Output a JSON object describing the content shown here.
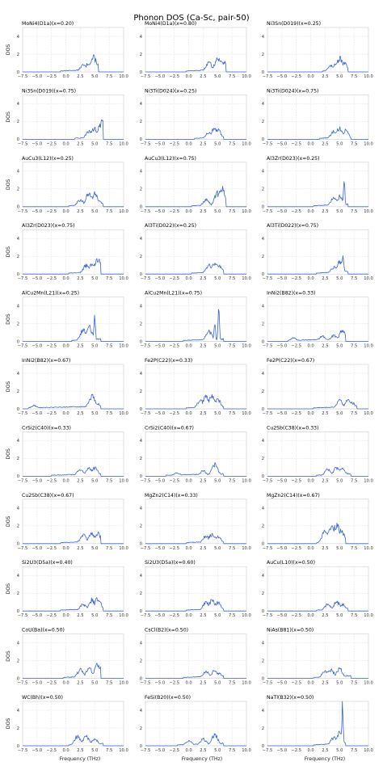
{
  "figure": {
    "title": "Phonon DOS (Ca-Sc, pair-50)",
    "xlabel": "Frequency (THz)",
    "ylabel": "DOS",
    "line_color": "#3b64d4"
  },
  "chart_data": {
    "type": "line",
    "grid": true,
    "xlim": [
      -7.5,
      10.0
    ],
    "ylim": [
      0,
      5
    ],
    "xticks": [
      "−7.5",
      "−5.0",
      "−2.5",
      "0.0",
      "2.5",
      "5.0",
      "7.5",
      "10.0"
    ],
    "yticks": [
      "0",
      "2",
      "4"
    ],
    "panels": [
      {
        "title": "MoNi4(D1a)(x=0.20)",
        "start": -1.0,
        "end": 5.6,
        "peaks": [
          [
            3.0,
            0.8
          ],
          [
            4.0,
            1.1
          ],
          [
            4.8,
            1.7
          ],
          [
            5.3,
            1.1
          ]
        ]
      },
      {
        "title": "MoNi4(D1a)(x=0.80)",
        "start": -0.5,
        "end": 6.5,
        "peaks": [
          [
            3.5,
            1.1
          ],
          [
            5.0,
            1.6
          ],
          [
            5.7,
            1.3
          ],
          [
            6.2,
            1.2
          ]
        ]
      },
      {
        "title": "Ni3Sn(D019)(x=0.25)",
        "start": 2.0,
        "end": 6.5,
        "peaks": [
          [
            3.5,
            0.7
          ],
          [
            4.5,
            1.2
          ],
          [
            5.0,
            1.6
          ],
          [
            5.8,
            1.0
          ]
        ]
      },
      {
        "title": "Ni3Sn(D019)(x=0.75)",
        "start": 1.5,
        "end": 6.5,
        "peaks": [
          [
            4.0,
            1.0
          ],
          [
            5.0,
            1.3
          ],
          [
            5.8,
            1.4
          ],
          [
            6.2,
            2.0
          ]
        ]
      },
      {
        "title": "Ni3Ti(D024)(x=0.25)",
        "start": 1.0,
        "end": 6.0,
        "peaks": [
          [
            3.5,
            0.9
          ],
          [
            4.5,
            1.3
          ],
          [
            5.0,
            1.1
          ]
        ]
      },
      {
        "title": "Ni3Ti(D024)(x=0.75)",
        "start": 1.5,
        "end": 7.0,
        "peaks": [
          [
            4.0,
            0.9
          ],
          [
            5.0,
            1.3
          ],
          [
            6.0,
            1.0
          ]
        ]
      },
      {
        "title": "AuCu3(L12)(x=0.25)",
        "start": 0.5,
        "end": 6.5,
        "peaks": [
          [
            2.5,
            0.8
          ],
          [
            4.0,
            1.6
          ],
          [
            5.0,
            1.5
          ],
          [
            5.8,
            0.6
          ]
        ]
      },
      {
        "title": "AuCu3(L12)(x=0.75)",
        "start": 0.5,
        "end": 6.5,
        "peaks": [
          [
            3.0,
            0.8
          ],
          [
            5.0,
            1.6
          ],
          [
            5.8,
            2.2
          ]
        ]
      },
      {
        "title": "Al3Zr(D023)(x=0.25)",
        "start": 0.5,
        "end": 6.5,
        "peaks": [
          [
            4.0,
            1.0
          ],
          [
            5.0,
            1.2
          ],
          [
            5.8,
            3.0
          ]
        ]
      },
      {
        "title": "Al3Zr(D023)(x=0.75)",
        "start": 0.5,
        "end": 6.0,
        "peaks": [
          [
            3.5,
            1.0
          ],
          [
            4.5,
            1.3
          ],
          [
            5.5,
            1.7
          ]
        ]
      },
      {
        "title": "Al3Ti(D022)(x=0.25)",
        "start": 0.5,
        "end": 6.0,
        "peaks": [
          [
            3.5,
            1.0
          ],
          [
            4.5,
            1.3
          ],
          [
            5.3,
            1.0
          ]
        ]
      },
      {
        "title": "Al3Ti(D022)(x=0.75)",
        "start": 1.0,
        "end": 6.5,
        "peaks": [
          [
            4.0,
            0.8
          ],
          [
            5.0,
            1.4
          ],
          [
            5.6,
            2.5
          ]
        ]
      },
      {
        "title": "AlCu2Mn(L21)(x=0.25)",
        "start": 1.0,
        "end": 6.0,
        "peaks": [
          [
            3.0,
            1.3
          ],
          [
            4.0,
            1.7
          ],
          [
            5.0,
            3.5
          ]
        ]
      },
      {
        "title": "AlCu2Mn(L21)(x=0.75)",
        "start": -1.0,
        "end": 6.0,
        "peaks": [
          [
            3.5,
            1.2
          ],
          [
            4.5,
            2.5
          ],
          [
            5.2,
            4.3
          ]
        ]
      },
      {
        "title": "InNi2(B82)(x=0.33)",
        "start": -4.0,
        "end": 6.0,
        "peaks": [
          [
            -3.0,
            0.4
          ],
          [
            2.0,
            0.6
          ],
          [
            4.0,
            0.7
          ],
          [
            5.5,
            1.3
          ]
        ]
      },
      {
        "title": "InNi2(B82)(x=0.67)",
        "start": -6.5,
        "end": 6.0,
        "peaks": [
          [
            -5.5,
            0.4
          ],
          [
            4.5,
            1.5
          ],
          [
            5.3,
            0.7
          ]
        ]
      },
      {
        "title": "Fe2P(C22)(x=0.33)",
        "start": -0.5,
        "end": 6.0,
        "peaks": [
          [
            2.0,
            1.0
          ],
          [
            3.0,
            1.4
          ],
          [
            4.0,
            1.5
          ],
          [
            5.0,
            1.1
          ]
        ]
      },
      {
        "title": "Fe2P(C22)(x=0.67)",
        "start": 0.5,
        "end": 8.0,
        "peaks": [
          [
            5.0,
            1.0
          ],
          [
            6.5,
            1.0
          ],
          [
            7.2,
            0.7
          ]
        ]
      },
      {
        "title": "CrSi2(C40)(x=0.33)",
        "start": -2.5,
        "end": 6.0,
        "peaks": [
          [
            2.5,
            0.8
          ],
          [
            4.0,
            1.0
          ],
          [
            5.0,
            1.0
          ]
        ]
      },
      {
        "title": "CrSi2(C40)(x=0.67)",
        "start": -4.0,
        "end": 6.0,
        "peaks": [
          [
            -2.0,
            0.4
          ],
          [
            2.5,
            0.6
          ],
          [
            4.5,
            1.4
          ]
        ]
      },
      {
        "title": "Cu2Sb(C38)(x=0.33)",
        "start": 1.0,
        "end": 7.0,
        "peaks": [
          [
            3.0,
            0.8
          ],
          [
            4.5,
            1.0
          ],
          [
            5.5,
            0.9
          ]
        ]
      },
      {
        "title": "Cu2Sb(C38)(x=0.67)",
        "start": -1.0,
        "end": 6.0,
        "peaks": [
          [
            3.0,
            1.0
          ],
          [
            4.5,
            1.2
          ],
          [
            5.5,
            1.2
          ]
        ]
      },
      {
        "title": "MgZn2(C14)(x=0.33)",
        "start": -0.5,
        "end": 6.0,
        "peaks": [
          [
            3.0,
            0.9
          ],
          [
            4.0,
            1.1
          ],
          [
            5.0,
            0.9
          ]
        ]
      },
      {
        "title": "MgZn2(C14)(x=0.67)",
        "start": 1.0,
        "end": 6.0,
        "peaks": [
          [
            2.5,
            1.5
          ],
          [
            3.5,
            2.0
          ],
          [
            4.5,
            2.3
          ],
          [
            5.3,
            1.5
          ]
        ]
      },
      {
        "title": "Si2U3(D5a)(x=0.40)",
        "start": -1.0,
        "end": 6.5,
        "peaks": [
          [
            3.0,
            0.8
          ],
          [
            4.5,
            1.3
          ],
          [
            5.5,
            1.5
          ]
        ]
      },
      {
        "title": "Si2U3(D5a)(x=0.60)",
        "start": -0.5,
        "end": 6.0,
        "peaks": [
          [
            3.0,
            1.0
          ],
          [
            4.0,
            1.2
          ],
          [
            5.0,
            1.0
          ]
        ]
      },
      {
        "title": "AuCu(L10)(x=0.50)",
        "start": 1.0,
        "end": 6.5,
        "peaks": [
          [
            3.0,
            0.8
          ],
          [
            4.5,
            1.1
          ],
          [
            5.5,
            0.8
          ]
        ]
      },
      {
        "title": "CoU(Ba)(x=0.50)",
        "start": -0.5,
        "end": 6.0,
        "peaks": [
          [
            2.5,
            1.0
          ],
          [
            4.0,
            1.2
          ],
          [
            5.5,
            1.7
          ]
        ]
      },
      {
        "title": "CsCl(B2)(x=0.50)",
        "start": -1.0,
        "end": 6.0,
        "peaks": [
          [
            3.0,
            0.8
          ],
          [
            4.5,
            0.9
          ],
          [
            5.2,
            0.6
          ]
        ]
      },
      {
        "title": "NiAs(B81)(x=0.50)",
        "start": 0.5,
        "end": 7.0,
        "peaks": [
          [
            2.5,
            0.9
          ],
          [
            3.5,
            1.0
          ],
          [
            5.0,
            1.1
          ]
        ]
      },
      {
        "title": "WC(Bh)(x=0.50)",
        "start": 0.5,
        "end": 6.5,
        "peaks": [
          [
            2.0,
            1.1
          ],
          [
            3.5,
            1.1
          ],
          [
            5.0,
            0.8
          ]
        ]
      },
      {
        "title": "FeSi(B20)(x=0.50)",
        "start": -2.0,
        "end": 6.0,
        "peaks": [
          [
            0.0,
            0.6
          ],
          [
            2.5,
            0.8
          ],
          [
            4.5,
            1.3
          ]
        ]
      },
      {
        "title": "NaTl(B32)(x=0.50)",
        "start": 0.5,
        "end": 6.0,
        "peaks": [
          [
            4.0,
            1.0
          ],
          [
            5.0,
            1.6
          ],
          [
            5.5,
            5.0
          ]
        ]
      }
    ]
  }
}
